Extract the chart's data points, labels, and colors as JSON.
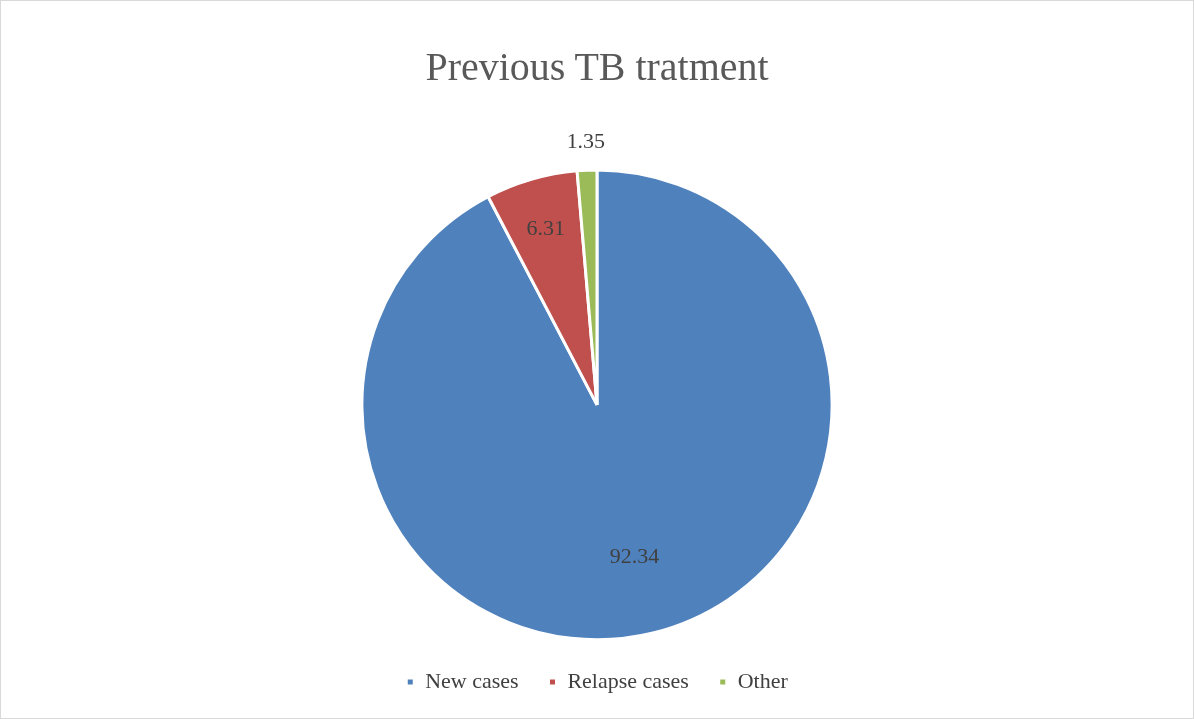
{
  "chart_data": {
    "type": "pie",
    "title": "Previous TB tratment",
    "categories": [
      "New cases",
      "Relapse cases",
      "Other"
    ],
    "values": [
      92.34,
      6.31,
      1.35
    ],
    "colors": [
      "#4f81bd",
      "#c0504d",
      "#9bbb59"
    ],
    "data_labels": true,
    "legend": "bottom"
  }
}
